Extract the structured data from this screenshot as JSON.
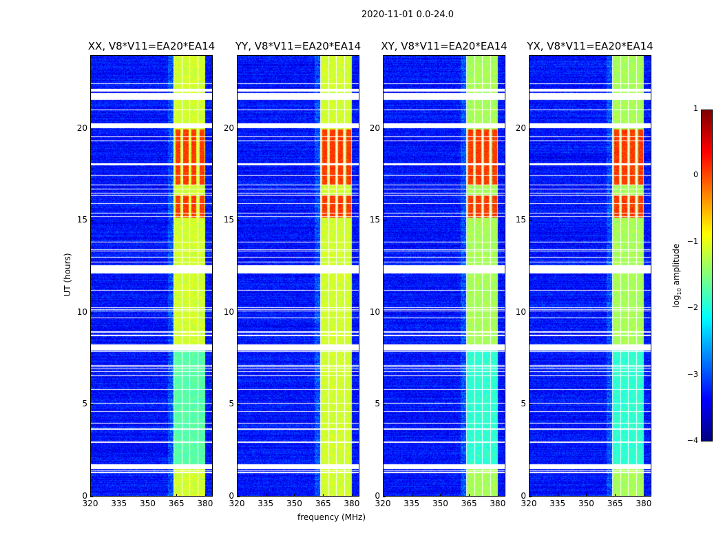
{
  "chart_data": {
    "type": "heatmap",
    "title": "2020-11-01 0.0-24.0",
    "xlabel": "frequency (MHz)",
    "ylabel": "UT (hours)",
    "xlim": [
      320,
      384
    ],
    "ylim": [
      0,
      24
    ],
    "xticks": [
      320,
      335,
      350,
      365,
      380
    ],
    "yticks": [
      0,
      5,
      10,
      15,
      20
    ],
    "panels": [
      {
        "title": "XX, V8*V11=EA20*EA14"
      },
      {
        "title": "YY, V8*V11=EA20*EA14"
      },
      {
        "title": "XY, V8*V11=EA20*EA14"
      },
      {
        "title": "YX, V8*V11=EA20*EA14"
      }
    ],
    "colorbar": {
      "label_prefix": "log",
      "label_sub": "10",
      "label_suffix": " amplitude",
      "range": [
        -4,
        1
      ],
      "ticks": [
        1,
        0,
        -1,
        -2,
        -3,
        -4
      ],
      "colormap": "jet"
    },
    "rfi_band_mhz": [
      363.5,
      380
    ],
    "background_level": -3.3,
    "band_level": -1.1,
    "strong_rfi_hours": [
      [
        15.2,
        16.4
      ],
      [
        17.0,
        20.0
      ]
    ],
    "flagged_hours": [
      [
        1.5,
        1.75
      ],
      [
        8.0,
        8.3
      ],
      [
        12.15,
        12.6
      ],
      [
        20.1,
        20.35
      ],
      [
        21.6,
        22.0
      ]
    ]
  }
}
